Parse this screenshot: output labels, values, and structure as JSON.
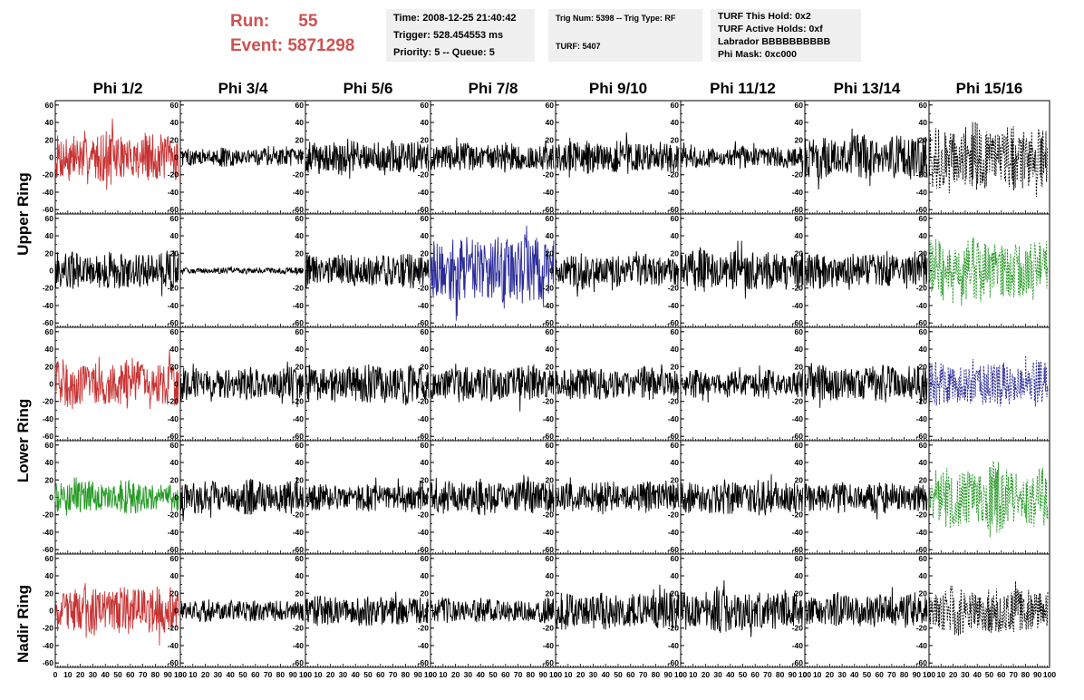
{
  "header": {
    "run_label": "Run:",
    "run_value": "55",
    "event_label": "Event:",
    "event_value": "5871298",
    "title_color": "#d05050",
    "time": "Time: 2008-12-25 21:40:42",
    "trigger": "Trigger: 528.454553 ms",
    "priority": "Priority: 5 -- Queue: 5",
    "trig_num": "Trig Num: 5398 -- Trig Type: RF",
    "turf": "TURF: 5407",
    "turf_this_hold": "TURF This Hold: 0x2",
    "turf_active_holds": "TURF Active Holds: 0xf",
    "labrador": "Labrador BBBBBBBBBB",
    "phi_mask": "Phi Mask: 0xc000"
  },
  "chart_data": {
    "type": "line",
    "columns": [
      "Phi 1/2",
      "Phi 3/4",
      "Phi 5/6",
      "Phi 7/8",
      "Phi 9/10",
      "Phi 11/12",
      "Phi 13/14",
      "Phi 15/16"
    ],
    "rows": [
      "Upper Ring",
      "Lower Ring",
      "Nadir Ring"
    ],
    "xlim": [
      0,
      100
    ],
    "ylim": [
      -65,
      65
    ],
    "x_ticks": [
      0,
      10,
      20,
      30,
      40,
      50,
      60,
      70,
      80,
      90,
      100
    ],
    "x_tick_labels": [
      "0",
      "10",
      "20",
      "30",
      "40",
      "50",
      "60",
      "70",
      "80",
      "90",
      "100"
    ],
    "y_ticks": [
      -60,
      -40,
      -20,
      0,
      20,
      40,
      60
    ],
    "y_tick_labels": [
      "-60",
      "-40",
      "-20",
      "0",
      "20",
      "40",
      "60"
    ],
    "trace_colors": {
      "black": "#000000",
      "red": "#c83232",
      "green": "#229922",
      "blue": "#2b2b99"
    },
    "panels": [
      {
        "row": 0,
        "col": 0,
        "color": "red",
        "amplitude": 32,
        "style": "solid"
      },
      {
        "row": 0,
        "col": 1,
        "color": "black",
        "amplitude": 12,
        "style": "solid"
      },
      {
        "row": 0,
        "col": 2,
        "color": "black",
        "amplitude": 22,
        "style": "solid"
      },
      {
        "row": 0,
        "col": 3,
        "color": "black",
        "amplitude": 18,
        "style": "solid"
      },
      {
        "row": 0,
        "col": 4,
        "color": "black",
        "amplitude": 22,
        "style": "solid"
      },
      {
        "row": 0,
        "col": 5,
        "color": "black",
        "amplitude": 14,
        "style": "solid"
      },
      {
        "row": 0,
        "col": 6,
        "color": "black",
        "amplitude": 28,
        "style": "solid"
      },
      {
        "row": 0,
        "col": 7,
        "color": "black",
        "amplitude": 42,
        "style": "dashed"
      },
      {
        "row": 1,
        "col": 0,
        "color": "black",
        "amplitude": 25,
        "style": "solid"
      },
      {
        "row": 1,
        "col": 1,
        "color": "black",
        "amplitude": 4,
        "style": "solid"
      },
      {
        "row": 1,
        "col": 2,
        "color": "black",
        "amplitude": 22,
        "style": "solid"
      },
      {
        "row": 1,
        "col": 3,
        "color": "blue",
        "amplitude": 45,
        "style": "solid"
      },
      {
        "row": 1,
        "col": 4,
        "color": "black",
        "amplitude": 22,
        "style": "solid"
      },
      {
        "row": 1,
        "col": 5,
        "color": "black",
        "amplitude": 26,
        "style": "solid"
      },
      {
        "row": 1,
        "col": 6,
        "color": "black",
        "amplitude": 22,
        "style": "solid"
      },
      {
        "row": 1,
        "col": 7,
        "color": "green",
        "amplitude": 40,
        "style": "dashed"
      },
      {
        "row": 2,
        "col": 0,
        "color": "red",
        "amplitude": 30,
        "style": "solid"
      },
      {
        "row": 2,
        "col": 1,
        "color": "black",
        "amplitude": 20,
        "style": "solid"
      },
      {
        "row": 2,
        "col": 2,
        "color": "black",
        "amplitude": 25,
        "style": "solid"
      },
      {
        "row": 2,
        "col": 3,
        "color": "black",
        "amplitude": 24,
        "style": "solid"
      },
      {
        "row": 2,
        "col": 4,
        "color": "black",
        "amplitude": 22,
        "style": "solid"
      },
      {
        "row": 2,
        "col": 5,
        "color": "black",
        "amplitude": 18,
        "style": "solid"
      },
      {
        "row": 2,
        "col": 6,
        "color": "black",
        "amplitude": 24,
        "style": "solid"
      },
      {
        "row": 2,
        "col": 7,
        "color": "blue",
        "amplitude": 28,
        "style": "dashed"
      },
      {
        "row": 3,
        "col": 0,
        "color": "green",
        "amplitude": 20,
        "style": "solid"
      },
      {
        "row": 3,
        "col": 1,
        "color": "black",
        "amplitude": 22,
        "style": "solid"
      },
      {
        "row": 3,
        "col": 2,
        "color": "black",
        "amplitude": 18,
        "style": "solid"
      },
      {
        "row": 3,
        "col": 3,
        "color": "black",
        "amplitude": 22,
        "style": "solid"
      },
      {
        "row": 3,
        "col": 4,
        "color": "black",
        "amplitude": 20,
        "style": "solid"
      },
      {
        "row": 3,
        "col": 5,
        "color": "black",
        "amplitude": 22,
        "style": "solid"
      },
      {
        "row": 3,
        "col": 6,
        "color": "black",
        "amplitude": 20,
        "style": "solid"
      },
      {
        "row": 3,
        "col": 7,
        "color": "green",
        "amplitude": 42,
        "style": "dashed"
      },
      {
        "row": 4,
        "col": 0,
        "color": "red",
        "amplitude": 32,
        "style": "solid"
      },
      {
        "row": 4,
        "col": 1,
        "color": "black",
        "amplitude": 14,
        "style": "solid"
      },
      {
        "row": 4,
        "col": 2,
        "color": "black",
        "amplitude": 20,
        "style": "solid"
      },
      {
        "row": 4,
        "col": 3,
        "color": "black",
        "amplitude": 16,
        "style": "solid"
      },
      {
        "row": 4,
        "col": 4,
        "color": "black",
        "amplitude": 24,
        "style": "solid"
      },
      {
        "row": 4,
        "col": 5,
        "color": "black",
        "amplitude": 26,
        "style": "solid"
      },
      {
        "row": 4,
        "col": 6,
        "color": "black",
        "amplitude": 22,
        "style": "solid"
      },
      {
        "row": 4,
        "col": 7,
        "color": "black",
        "amplitude": 30,
        "style": "dashed"
      }
    ]
  }
}
